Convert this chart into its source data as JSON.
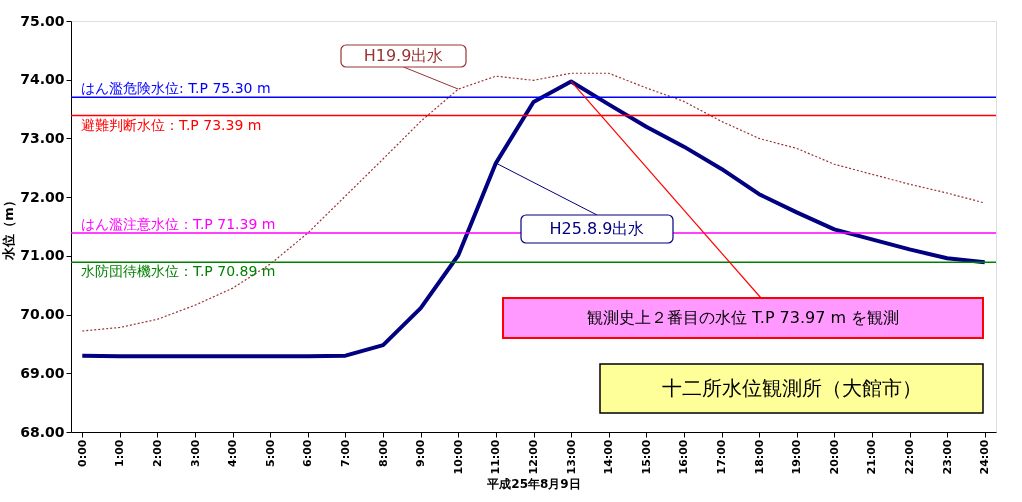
{
  "chart_data": {
    "type": "line",
    "xlabel": "平成25年8月9日",
    "ylabel": "水位（m）",
    "categories": [
      "0:00",
      "1:00",
      "2:00",
      "3:00",
      "4:00",
      "5:00",
      "6:00",
      "7:00",
      "8:00",
      "9:00",
      "10:00",
      "11:00",
      "12:00",
      "13:00",
      "14:00",
      "15:00",
      "16:00",
      "17:00",
      "18:00",
      "19:00",
      "20:00",
      "21:00",
      "22:00",
      "23:00",
      "24:00"
    ],
    "ylim": [
      68,
      75
    ],
    "yticks": [
      {
        "value": 68,
        "label": "68.00"
      },
      {
        "value": 69,
        "label": "69.00"
      },
      {
        "value": 70,
        "label": "70.00"
      },
      {
        "value": 71,
        "label": "71.00"
      },
      {
        "value": 72,
        "label": "72.00"
      },
      {
        "value": 73,
        "label": "73.00"
      },
      {
        "value": 74,
        "label": "74.00"
      },
      {
        "value": 75,
        "label": "75.00"
      }
    ],
    "series": [
      {
        "name": "H19.9出水",
        "color": "#993333",
        "line_style": "dotted",
        "values": [
          69.72,
          69.78,
          69.92,
          70.16,
          70.45,
          70.86,
          71.39,
          72.02,
          72.65,
          73.29,
          73.84,
          74.06,
          73.99,
          74.11,
          74.11,
          73.86,
          73.63,
          73.29,
          73.0,
          72.83,
          72.56,
          72.39,
          72.22,
          72.07,
          71.9
        ]
      },
      {
        "name": "H25.8.9出水",
        "color": "#000080",
        "line_style": "solid",
        "values": [
          69.3,
          69.29,
          69.29,
          69.29,
          69.29,
          69.29,
          69.29,
          69.3,
          69.48,
          70.11,
          71.01,
          72.58,
          73.62,
          73.97,
          73.58,
          73.2,
          72.86,
          72.48,
          72.05,
          71.74,
          71.45,
          71.28,
          71.11,
          70.96,
          70.89
        ]
      }
    ],
    "ref_lines": [
      {
        "axis": "y",
        "value": 73.7,
        "label": "はん濫危険水位: T.P 75.30 m",
        "color": "#0000ff"
      },
      {
        "axis": "y",
        "value": 73.39,
        "label": "避難判断水位：T.P 73.39 m",
        "color": "#ff0000"
      },
      {
        "axis": "y",
        "value": 71.39,
        "label": "はん濫注意水位：T.P 71.39 m",
        "color": "#ff00ff"
      },
      {
        "axis": "y",
        "value": 70.89,
        "label": "水防団待機水位：T.P 70.89 m",
        "color": "#008000"
      }
    ],
    "annotations": [
      {
        "text": "観測史上２番目の水位 T.P 73.97 m を観測",
        "x": "13:00",
        "y": 73.97
      },
      "十二所水位観測所（大館市）"
    ]
  }
}
